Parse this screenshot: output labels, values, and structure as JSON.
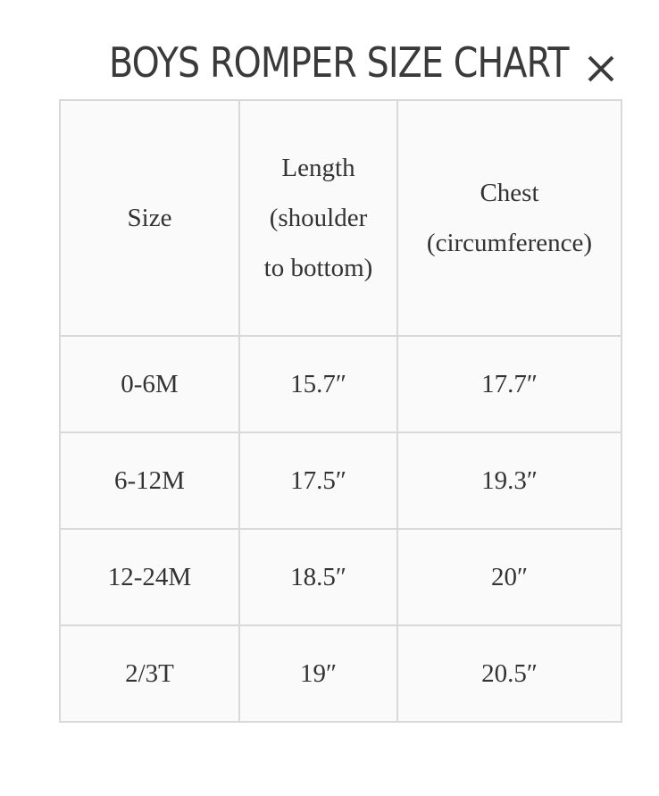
{
  "title": "BOYS ROMPER SIZE CHART",
  "close_icon": "close-x-icon",
  "table": {
    "headers": [
      [
        "Size"
      ],
      [
        "Length",
        "(shoulder",
        "to bottom)"
      ],
      [
        "Chest",
        "(circumference)"
      ]
    ],
    "rows": [
      [
        "0-6M",
        "15.7″",
        "17.7″"
      ],
      [
        "6-12M",
        "17.5″",
        "19.3″"
      ],
      [
        "12-24M",
        "18.5″",
        "20″"
      ],
      [
        "2/3T",
        "19″",
        "20.5″"
      ]
    ]
  }
}
